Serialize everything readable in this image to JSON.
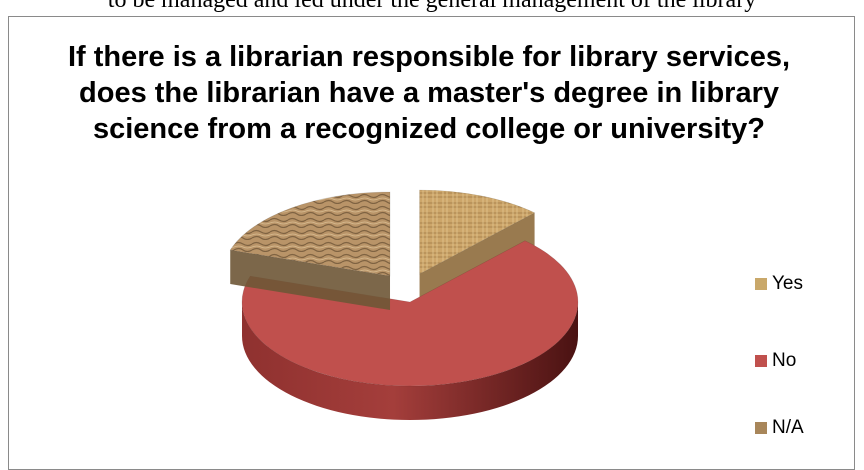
{
  "page_top_text": "to be managed and led under the general management of the library",
  "chart_data": {
    "type": "pie",
    "style": "3d-exploded",
    "title": "If there is a librarian responsible for library services, does the librarian have a master's degree in library science from a recognized college or university?",
    "categories": [
      "Yes",
      "No",
      "N/A"
    ],
    "values": [
      12,
      68,
      20
    ],
    "value_format": "percent (estimated)",
    "colors": [
      "#c9a86a",
      "#c0504d",
      "#a8865a"
    ],
    "legend": {
      "position": "right",
      "items": [
        "Yes",
        "No",
        "N/A"
      ]
    }
  }
}
